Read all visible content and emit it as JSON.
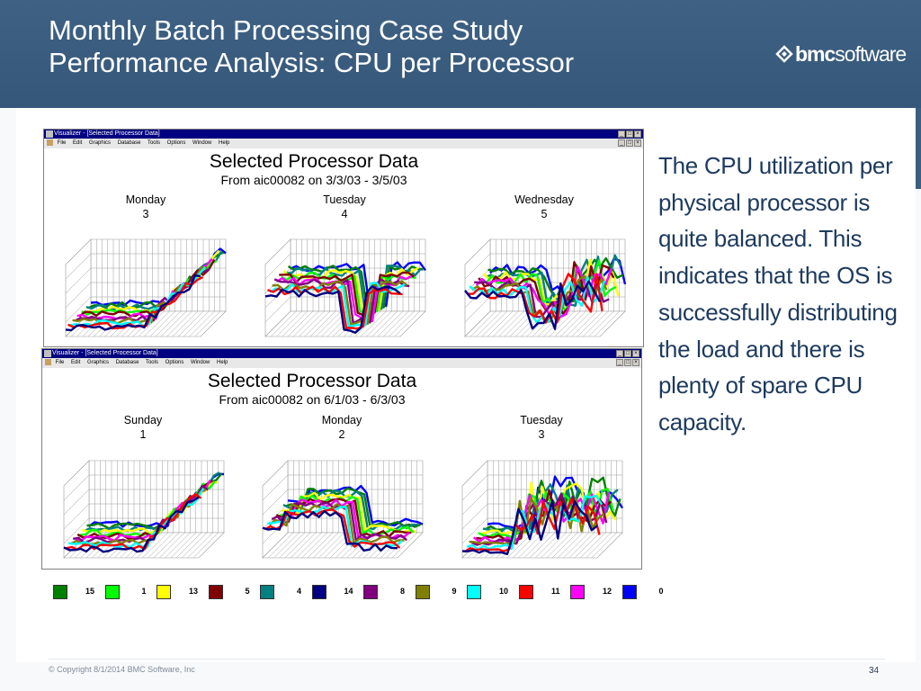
{
  "slide": {
    "title_line1": "Monthly Batch Processing Case Study",
    "title_line2": "Performance Analysis: CPU per Processor",
    "logo": {
      "bold": "bmc",
      "rest": "software"
    },
    "body_text": "The CPU utilization per physical processor is quite balanced.  This indicates that the OS is successfully distributing the load and there is plenty of spare CPU capacity.",
    "copyright": "© Copyright 8/1/2014 BMC Software, Inc",
    "page_number": "34"
  },
  "window_common": {
    "title": "Visualizer - [Selected Processor Data]",
    "menu": [
      "File",
      "Edit",
      "Graphics",
      "Database",
      "Tools",
      "Options",
      "Window",
      "Help"
    ],
    "controls": [
      "_",
      "□",
      "×"
    ]
  },
  "windows": [
    {
      "chart_title": "Selected Processor Data",
      "subtitle": "From aic00082 on 3/3/03 - 3/5/03",
      "days": [
        {
          "name": "Monday",
          "num": "3"
        },
        {
          "name": "Tuesday",
          "num": "4"
        },
        {
          "name": "Wednesday",
          "num": "5"
        }
      ]
    },
    {
      "chart_title": "Selected Processor Data",
      "subtitle": "From aic00082 on 6/1/03 - 6/3/03",
      "days": [
        {
          "name": "Sunday",
          "num": "1"
        },
        {
          "name": "Monday",
          "num": "2"
        },
        {
          "name": "Tuesday",
          "num": "3"
        }
      ]
    }
  ],
  "legend": [
    {
      "label": "15",
      "color": "#008000"
    },
    {
      "label": "1",
      "color": "#00ff00"
    },
    {
      "label": "13",
      "color": "#ffff00"
    },
    {
      "label": "5",
      "color": "#800000"
    },
    {
      "label": "4",
      "color": "#008080"
    },
    {
      "label": "14",
      "color": "#000080"
    },
    {
      "label": "8",
      "color": "#800080"
    },
    {
      "label": "9",
      "color": "#808000"
    },
    {
      "label": "10",
      "color": "#00ffff"
    },
    {
      "label": "11",
      "color": "#ff0000"
    },
    {
      "label": "12",
      "color": "#ff00ff"
    },
    {
      "label": "0",
      "color": "#0000ff"
    }
  ],
  "profiles": [
    "lowRise",
    "highDrop",
    "highDropSpike",
    "lowRise",
    "midDrop",
    "midSpike"
  ]
}
